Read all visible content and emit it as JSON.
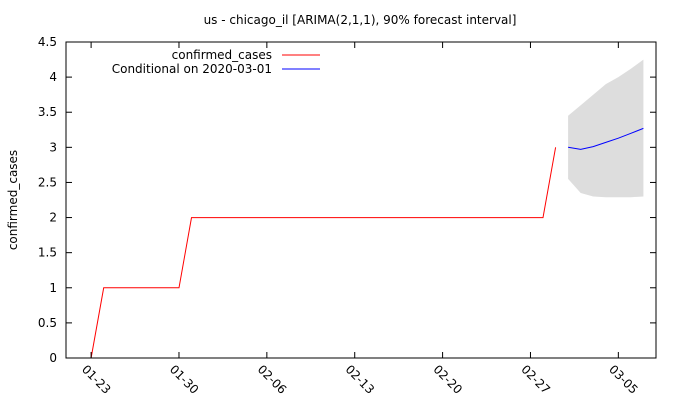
{
  "chart_data": {
    "type": "line",
    "title": "us - chicago_il [ARIMA(2,1,1), 90% forecast interval]",
    "xlabel": "",
    "ylabel": "confirmed_cases",
    "x_type": "date",
    "xlim": [
      "2020-01-21",
      "2020-03-08"
    ],
    "ylim": [
      0,
      4.5
    ],
    "yticks": [
      0,
      0.5,
      1,
      1.5,
      2,
      2.5,
      3,
      3.5,
      4,
      4.5
    ],
    "ytick_labels": [
      "0",
      "0.5",
      "1",
      "1.5",
      "2",
      "2.5",
      "3",
      "3.5",
      "4",
      "4.5"
    ],
    "xticks": [
      "2020-01-23",
      "2020-01-30",
      "2020-02-06",
      "2020-02-13",
      "2020-02-20",
      "2020-02-27",
      "2020-03-05"
    ],
    "xtick_labels": [
      "01-23",
      "01-30",
      "02-06",
      "02-13",
      "02-20",
      "02-27",
      "03-05"
    ],
    "grid": false,
    "legend_position": "top-left",
    "series": [
      {
        "name": "confirmed_cases",
        "color": "#ff0000",
        "points": [
          [
            "2020-01-23",
            0
          ],
          [
            "2020-01-24",
            1
          ],
          [
            "2020-01-25",
            1
          ],
          [
            "2020-01-26",
            1
          ],
          [
            "2020-01-27",
            1
          ],
          [
            "2020-01-28",
            1
          ],
          [
            "2020-01-29",
            1
          ],
          [
            "2020-01-30",
            1
          ],
          [
            "2020-01-31",
            2
          ],
          [
            "2020-02-01",
            2
          ],
          [
            "2020-02-05",
            2
          ],
          [
            "2020-02-10",
            2
          ],
          [
            "2020-02-15",
            2
          ],
          [
            "2020-02-20",
            2
          ],
          [
            "2020-02-25",
            2
          ],
          [
            "2020-02-28",
            2
          ],
          [
            "2020-02-29",
            3
          ]
        ]
      },
      {
        "name": "Conditional on 2020-03-01",
        "color": "#0000ff",
        "points": [
          [
            "2020-03-01",
            3.0
          ],
          [
            "2020-03-02",
            2.97
          ],
          [
            "2020-03-03",
            3.01
          ],
          [
            "2020-03-04",
            3.07
          ],
          [
            "2020-03-05",
            3.13
          ],
          [
            "2020-03-06",
            3.2
          ],
          [
            "2020-03-07",
            3.27
          ]
        ]
      }
    ],
    "forecast_interval": {
      "color": "#dddddd",
      "x": [
        "2020-03-01",
        "2020-03-02",
        "2020-03-03",
        "2020-03-04",
        "2020-03-05",
        "2020-03-06",
        "2020-03-07"
      ],
      "lower": [
        2.55,
        2.35,
        2.3,
        2.29,
        2.29,
        2.29,
        2.3
      ],
      "upper": [
        3.45,
        3.6,
        3.75,
        3.9,
        4.0,
        4.12,
        4.25
      ]
    }
  }
}
